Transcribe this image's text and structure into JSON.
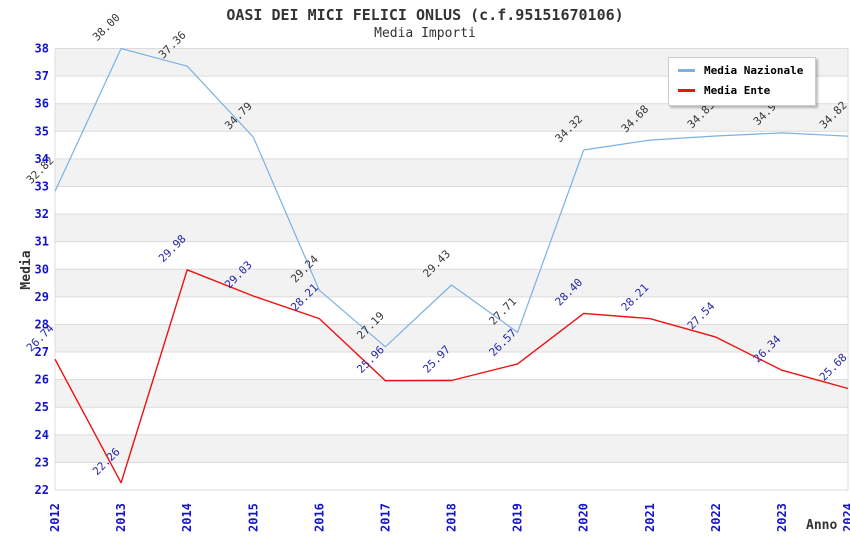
{
  "chart_data": {
    "type": "line",
    "title": "OASI DEI MICI FELICI ONLUS (c.f.95151670106)",
    "subtitle": "Media Importi",
    "xlabel": "Anno",
    "ylabel": "Media",
    "categories": [
      "2012",
      "2013",
      "2014",
      "2015",
      "2016",
      "2017",
      "2018",
      "2019",
      "2020",
      "2021",
      "2022",
      "2023",
      "2024"
    ],
    "series": [
      {
        "name": "Media Nazionale",
        "color": "#7db1e3",
        "label_color": "#37373d",
        "values": [
          32.82,
          38.0,
          37.36,
          34.79,
          29.24,
          27.19,
          29.43,
          27.71,
          34.32,
          34.68,
          34.83,
          34.94,
          34.82
        ]
      },
      {
        "name": "Media Ente",
        "color": "#ee1111",
        "label_color": "#2626a8",
        "values": [
          26.74,
          22.26,
          29.98,
          29.03,
          28.21,
          25.96,
          25.97,
          26.57,
          28.4,
          28.21,
          27.54,
          26.34,
          25.68
        ]
      }
    ],
    "ylim": [
      22,
      38
    ],
    "ytick_step": 1,
    "grid": true,
    "band_fill": "#f2f2f2",
    "gridline_color": "#dcdcdc",
    "axis_tick_color": "#1414cc",
    "axis_title_color": "#333333",
    "legend_position": "top-right",
    "value_label_decimals": 2
  }
}
